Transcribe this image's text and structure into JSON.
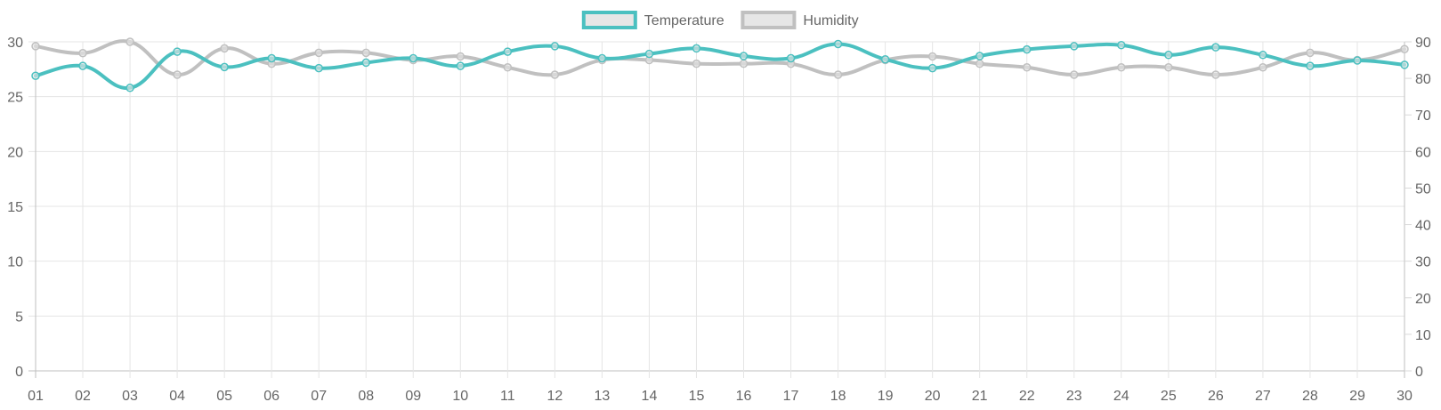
{
  "chart_data": {
    "type": "line",
    "categories": [
      "01",
      "02",
      "03",
      "04",
      "05",
      "06",
      "07",
      "08",
      "09",
      "10",
      "11",
      "12",
      "13",
      "14",
      "15",
      "16",
      "17",
      "18",
      "19",
      "20",
      "21",
      "22",
      "23",
      "24",
      "25",
      "26",
      "27",
      "28",
      "29",
      "30"
    ],
    "series": [
      {
        "name": "Temperature",
        "axis": "left",
        "color": "#4bc0c0",
        "values": [
          26.9,
          27.8,
          25.8,
          29.1,
          27.7,
          28.5,
          27.6,
          28.1,
          28.5,
          27.8,
          29.1,
          29.6,
          28.5,
          28.9,
          29.4,
          28.7,
          28.5,
          29.8,
          28.4,
          27.6,
          28.7,
          29.3,
          29.6,
          29.7,
          28.8,
          29.5,
          28.8,
          27.8,
          28.3,
          27.9
        ]
      },
      {
        "name": "Humidity",
        "axis": "right",
        "color": "#c0c0c0",
        "values": [
          88.8,
          86.9,
          90.0,
          81.0,
          88.2,
          84.0,
          87.0,
          87.0,
          85.0,
          86.0,
          83.0,
          81.0,
          85.0,
          85.0,
          84.0,
          84.0,
          84.0,
          81.0,
          85.0,
          86.0,
          84.0,
          83.0,
          81.0,
          83.0,
          83.0,
          81.0,
          83.0,
          87.0,
          85.0,
          88.0
        ]
      }
    ],
    "yleft": {
      "ylim": [
        0,
        30
      ],
      "ticks": [
        0,
        5,
        10,
        15,
        20,
        25,
        30
      ]
    },
    "yright": {
      "ylim": [
        0,
        90
      ],
      "ticks": [
        0,
        10,
        20,
        30,
        40,
        50,
        60,
        70,
        80,
        90
      ]
    },
    "grid": true,
    "legend": "top-center",
    "title": "",
    "xlabel": "",
    "ylabel": ""
  }
}
